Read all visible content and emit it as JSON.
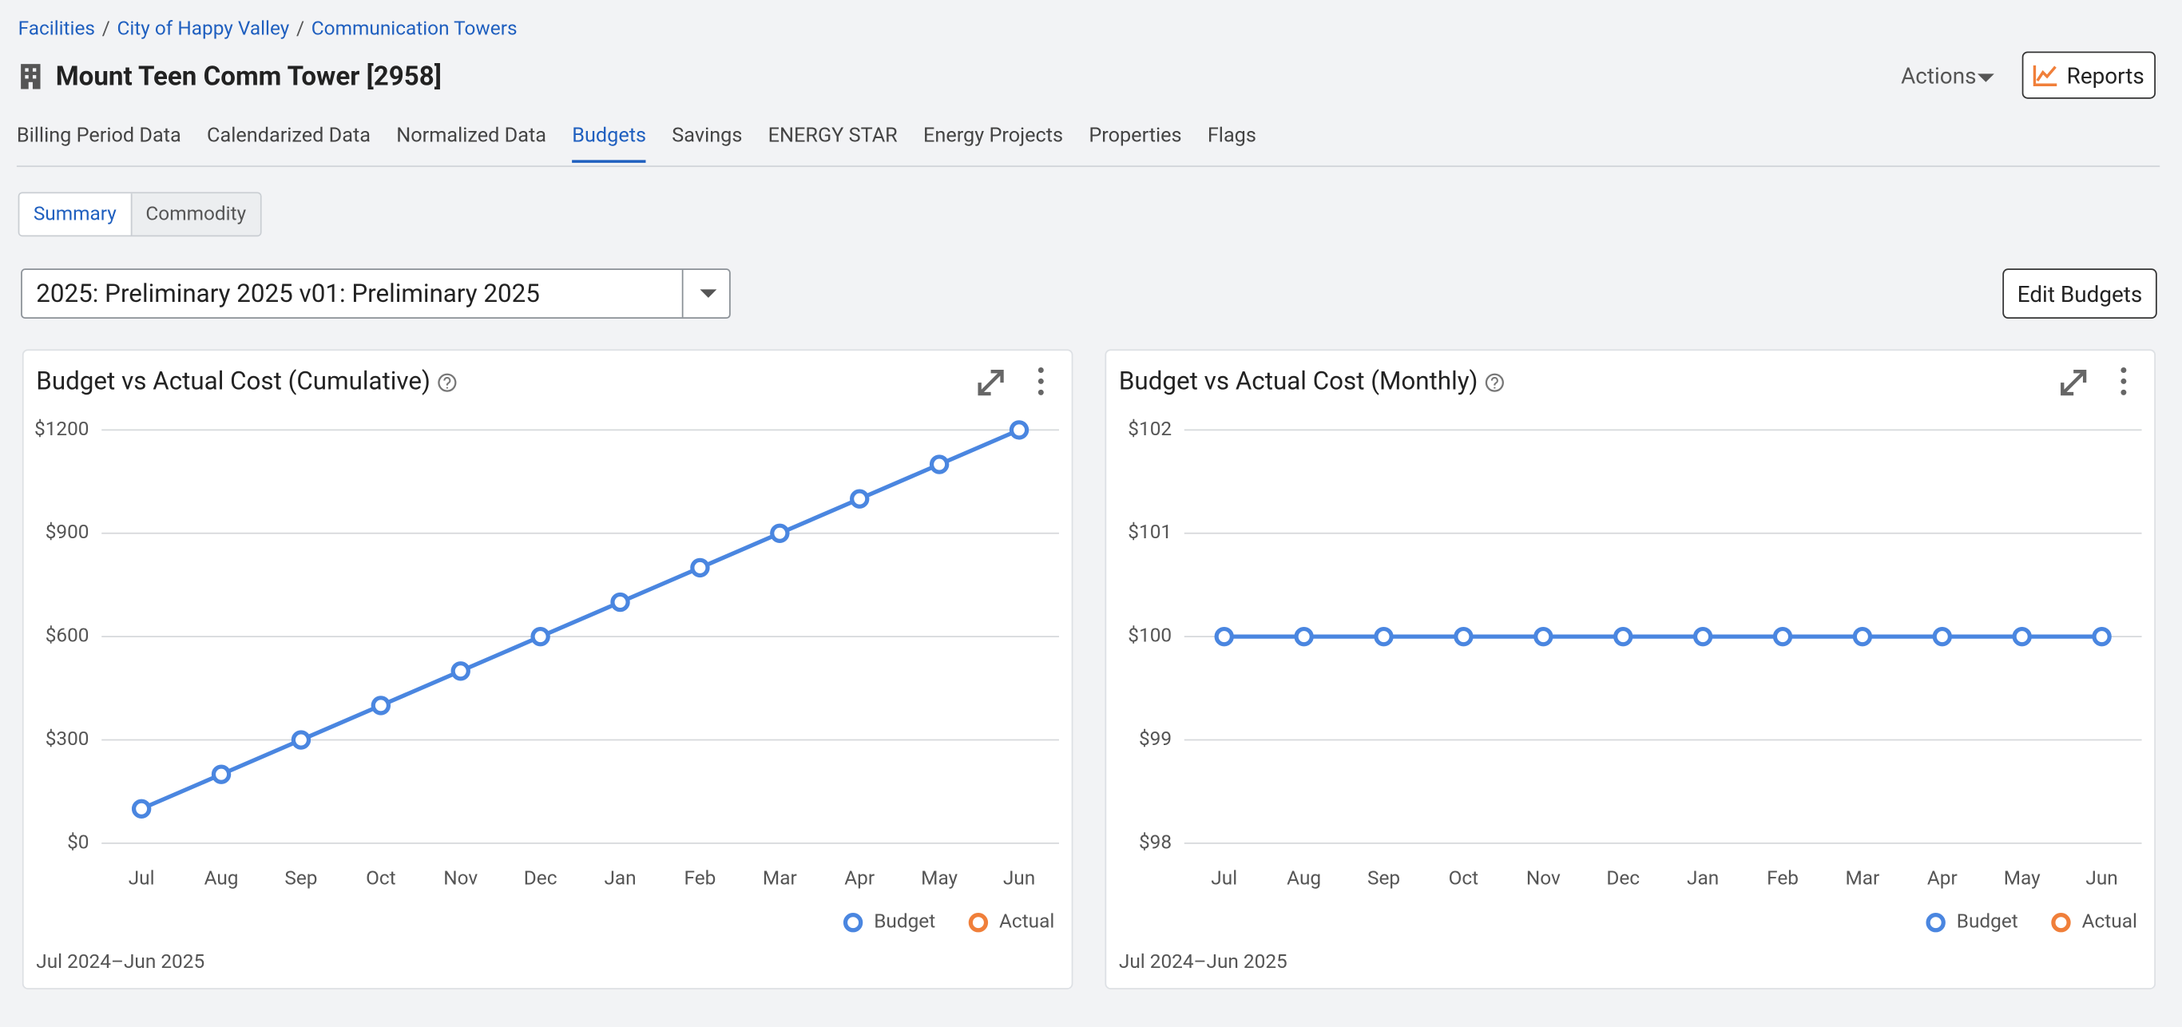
{
  "breadcrumbs": [
    "Facilities",
    "City of Happy Valley",
    "Communication Towers"
  ],
  "breadcrumb_separator": "/",
  "title": "Mount Teen Comm Tower [2958]",
  "actions": "Actions",
  "reports": "Reports",
  "tabs": [
    "Billing Period Data",
    "Calendarized Data",
    "Normalized Data",
    "Budgets",
    "Savings",
    "ENERGY STAR",
    "Energy Projects",
    "Properties",
    "Flags"
  ],
  "active_tab": 3,
  "subtabs": [
    "Summary",
    "Commodity"
  ],
  "active_subtab": 0,
  "budget_select": "2025: Preliminary 2025 v01: Preliminary 2025",
  "edit_button": "Edit Budgets",
  "chart_data": [
    {
      "type": "line",
      "title": "Budget vs Actual Cost (Cumulative)",
      "footnote": "Jul 2024–Jun 2025",
      "categories": [
        "Jul",
        "Aug",
        "Sep",
        "Oct",
        "Nov",
        "Dec",
        "Jan",
        "Feb",
        "Mar",
        "Apr",
        "May",
        "Jun"
      ],
      "series": [
        {
          "name": "Budget",
          "color": "#4a86e0",
          "values": [
            100,
            200,
            300,
            400,
            500,
            600,
            700,
            800,
            900,
            1000,
            1100,
            1200
          ]
        },
        {
          "name": "Actual",
          "color": "#f07f3a",
          "values": [
            null,
            null,
            null,
            null,
            null,
            null,
            null,
            null,
            null,
            null,
            null,
            null
          ]
        }
      ],
      "ylim": [
        0,
        1200
      ],
      "yticks": [
        {
          "value": 0,
          "label": "$0"
        },
        {
          "value": 300,
          "label": "$300"
        },
        {
          "value": 600,
          "label": "$600"
        },
        {
          "value": 900,
          "label": "$900"
        },
        {
          "value": 1200,
          "label": "$1200"
        }
      ],
      "grid": true
    },
    {
      "type": "line",
      "title": "Budget vs Actual Cost (Monthly)",
      "footnote": "Jul 2024–Jun 2025",
      "categories": [
        "Jul",
        "Aug",
        "Sep",
        "Oct",
        "Nov",
        "Dec",
        "Jan",
        "Feb",
        "Mar",
        "Apr",
        "May",
        "Jun"
      ],
      "series": [
        {
          "name": "Budget",
          "color": "#4a86e0",
          "values": [
            100,
            100,
            100,
            100,
            100,
            100,
            100,
            100,
            100,
            100,
            100,
            100
          ]
        },
        {
          "name": "Actual",
          "color": "#f07f3a",
          "values": [
            null,
            null,
            null,
            null,
            null,
            null,
            null,
            null,
            null,
            null,
            null,
            null
          ]
        }
      ],
      "ylim": [
        98,
        102
      ],
      "yticks": [
        {
          "value": 98,
          "label": "$98"
        },
        {
          "value": 99,
          "label": "$99"
        },
        {
          "value": 100,
          "label": "$100"
        },
        {
          "value": 101,
          "label": "$101"
        },
        {
          "value": 102,
          "label": "$102"
        }
      ],
      "grid": true
    }
  ]
}
